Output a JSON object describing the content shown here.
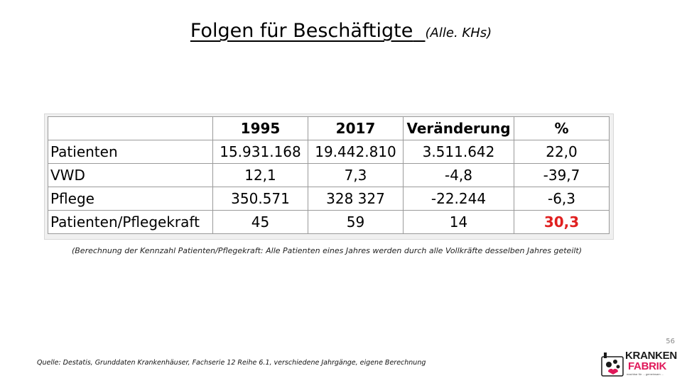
{
  "title": {
    "main": "Folgen für Beschäftigte",
    "sub": "(Alle. KHs)"
  },
  "table": {
    "headers": [
      "",
      "1995",
      "2017",
      "Veränderung",
      "%"
    ],
    "rows": [
      {
        "label": "Patienten",
        "v1995": "15.931.168",
        "v2017": "19.442.810",
        "change": "3.511.642",
        "pct": "22,0"
      },
      {
        "label": "VWD",
        "v1995": "12,1",
        "v2017": "7,3",
        "change": "-4,8",
        "pct": "-39,7"
      },
      {
        "label": "Pflege",
        "v1995": "350.571",
        "v2017": "328 327",
        "change": "-22.244",
        "pct": "-6,3"
      },
      {
        "label": "Patienten/Pflegekraft",
        "v1995": "45",
        "v2017": "59",
        "change": "14",
        "pct": "30,3"
      }
    ],
    "highlight_color": "#e02020"
  },
  "note": "(Berechnung der Kennzahl Patienten/Pflegekraft: Alle Patienten eines Jahres werden durch alle Vollkräfte desselben Jahres geteilt)",
  "page_number": "56",
  "source": "Quelle: Destatis, Grunddaten Krankenhäuser, Fachserie 12 Reihe 6.1, verschiedene Jahrgänge, eigene Berechnung",
  "logo": {
    "word1": "KRANKEN",
    "word2": "FABRIK",
    "tagline": "machbar für ... gemeinsam ...",
    "accent_color": "#e0185a"
  }
}
